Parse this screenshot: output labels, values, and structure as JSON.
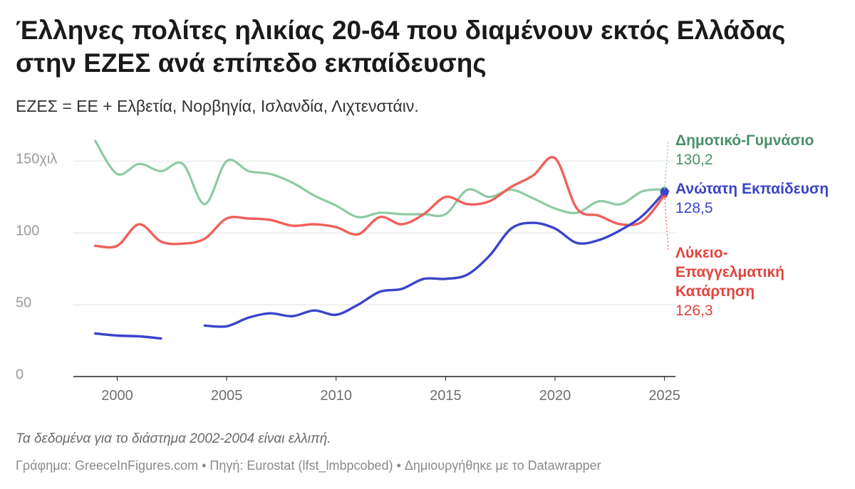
{
  "header": {
    "title": "Έλληνες πολίτες ηλικίας 20-64 που διαμένουν εκτός Ελλάδας στην ΕΖΕΣ ανά επίπεδο εκπαίδευσης",
    "subtitle": "ΕΖΕΣ = ΕΕ + Ελβετία, Νορβηγία, Ισλανδία, Λιχτενστάιν."
  },
  "footer": {
    "notes": "Τα δεδομένα για το διάστημα 2002-2004 είναι ελλιπή.",
    "byline": "Γράφημα: GreeceInFigures.com • Πηγή: Eurostat (lfst_lmbpcobed) • Δημιουργήθηκε με το Datawrapper"
  },
  "chart_data": {
    "type": "line",
    "xlim": [
      1998,
      2025.5
    ],
    "ylim": [
      0,
      165
    ],
    "y_ticks": [
      {
        "value": 0,
        "label": "0"
      },
      {
        "value": 50,
        "label": "50"
      },
      {
        "value": 100,
        "label": "100"
      },
      {
        "value": 150,
        "label": "150χιλ"
      }
    ],
    "x_ticks": [
      {
        "value": 2000,
        "label": "2000"
      },
      {
        "value": 2005,
        "label": "2005"
      },
      {
        "value": 2010,
        "label": "2010"
      },
      {
        "value": 2015,
        "label": "2015"
      },
      {
        "value": 2020,
        "label": "2020"
      },
      {
        "value": 2025,
        "label": "2025"
      }
    ],
    "grid": true,
    "series": [
      {
        "name": "Δημοτικό-Γυμνάσιο",
        "label_lines": [
          "Δημοτικό-Γυμνάσιο"
        ],
        "end_value_label": "130,2",
        "color": "#8fcaa4",
        "label_color": "#4a9068",
        "points": [
          [
            1999,
            164
          ],
          [
            2000,
            141
          ],
          [
            2001,
            148
          ],
          [
            2002,
            143
          ],
          [
            2003,
            148
          ],
          [
            2004,
            120
          ],
          [
            2005,
            150
          ],
          [
            2006,
            143
          ],
          [
            2007,
            141
          ],
          [
            2008,
            135
          ],
          [
            2009,
            126
          ],
          [
            2010,
            119
          ],
          [
            2011,
            111
          ],
          [
            2012,
            114
          ],
          [
            2013,
            113
          ],
          [
            2014,
            113
          ],
          [
            2015,
            113
          ],
          [
            2016,
            130
          ],
          [
            2017,
            125
          ],
          [
            2018,
            130
          ],
          [
            2019,
            124
          ],
          [
            2020,
            117
          ],
          [
            2021,
            114
          ],
          [
            2022,
            122
          ],
          [
            2023,
            120
          ],
          [
            2024,
            129
          ],
          [
            2025,
            130.2
          ]
        ]
      },
      {
        "name": "Ανώτατη Εκπαίδευση",
        "label_lines": [
          "Ανώτατη Εκπαίδευση"
        ],
        "end_value_label": "128,5",
        "color": "#3a44c9",
        "label_color": "#3a44c9",
        "segments": [
          [
            [
              1999,
              30
            ],
            [
              2000,
              28.5
            ],
            [
              2001,
              28
            ],
            [
              2002,
              26.5
            ]
          ],
          [
            [
              2004,
              35.5
            ],
            [
              2005,
              35
            ],
            [
              2006,
              41
            ],
            [
              2007,
              44
            ],
            [
              2008,
              42
            ],
            [
              2009,
              46
            ],
            [
              2010,
              43
            ],
            [
              2011,
              50
            ],
            [
              2012,
              59
            ],
            [
              2013,
              61
            ],
            [
              2014,
              68
            ],
            [
              2015,
              68
            ],
            [
              2016,
              71
            ],
            [
              2017,
              84
            ],
            [
              2018,
              103
            ],
            [
              2019,
              107
            ],
            [
              2020,
              103
            ],
            [
              2021,
              93
            ],
            [
              2022,
              95
            ],
            [
              2023,
              102
            ],
            [
              2024,
              112
            ],
            [
              2025,
              128.5
            ]
          ]
        ]
      },
      {
        "name": "Λύκειο-Επαγγελματική Κατάρτηση",
        "label_lines": [
          "Λύκειο-",
          "Επαγγελματική",
          "Κατάρτηση"
        ],
        "end_value_label": "126,3",
        "color": "#f0605a",
        "label_color": "#e0443d",
        "points": [
          [
            1999,
            91
          ],
          [
            2000,
            91
          ],
          [
            2001,
            106
          ],
          [
            2002,
            94
          ],
          [
            2003,
            92.5
          ],
          [
            2004,
            96
          ],
          [
            2005,
            110
          ],
          [
            2006,
            110
          ],
          [
            2007,
            109
          ],
          [
            2008,
            105
          ],
          [
            2009,
            106
          ],
          [
            2010,
            104
          ],
          [
            2011,
            99
          ],
          [
            2012,
            111
          ],
          [
            2013,
            106
          ],
          [
            2014,
            113
          ],
          [
            2015,
            125
          ],
          [
            2016,
            120
          ],
          [
            2017,
            122
          ],
          [
            2018,
            132
          ],
          [
            2019,
            140
          ],
          [
            2020,
            152
          ],
          [
            2021,
            117
          ],
          [
            2022,
            112
          ],
          [
            2023,
            106
          ],
          [
            2024,
            108
          ],
          [
            2025,
            126.3
          ]
        ]
      }
    ]
  }
}
